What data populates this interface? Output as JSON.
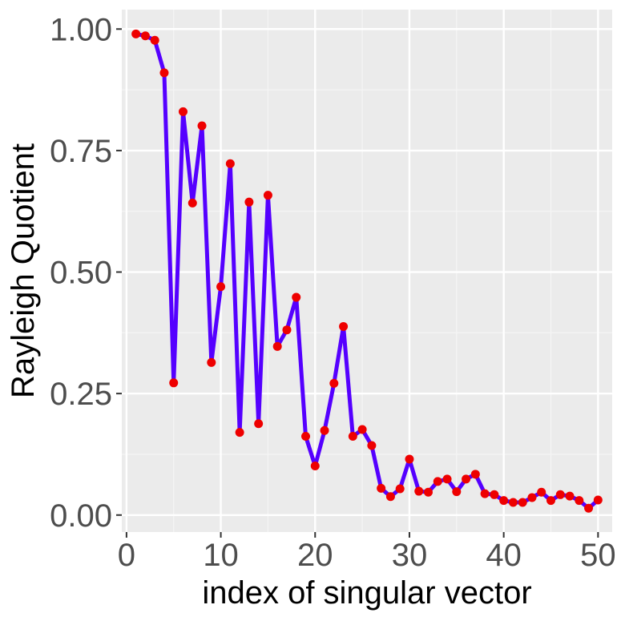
{
  "chart_data": {
    "type": "line",
    "xlabel": "index of singular vector",
    "ylabel": "Rayleigh Quotient",
    "xlim": [
      -0.5,
      51.5
    ],
    "ylim": [
      -0.035,
      1.04
    ],
    "x_ticks": [
      0,
      10,
      20,
      30,
      40,
      50
    ],
    "x_tick_labels": [
      "0",
      "10",
      "20",
      "30",
      "40",
      "50"
    ],
    "y_ticks": [
      0,
      0.25,
      0.5,
      0.75,
      1.0
    ],
    "y_tick_labels": [
      "0.00",
      "0.25",
      "0.50",
      "0.75",
      "1.00"
    ],
    "grid": true,
    "legend": "none",
    "colors": {
      "panel_background": "#ebebeb",
      "grid_major": "#ffffff",
      "grid_minor": "#f5f5f5",
      "line": "#5500ff",
      "points": "#ee0000"
    },
    "series": [
      {
        "x": [
          1,
          2,
          3,
          4,
          5,
          6,
          7,
          8,
          9,
          10,
          11,
          12,
          13,
          14,
          15,
          16,
          17,
          18,
          19,
          20,
          21,
          22,
          23,
          24,
          25,
          26,
          27,
          28,
          29,
          30,
          31,
          32,
          33,
          34,
          35,
          36,
          37,
          38,
          39,
          40,
          41,
          42,
          43,
          44,
          45,
          46,
          47,
          48,
          49,
          50
        ],
        "values": [
          0.99,
          0.986,
          0.977,
          0.91,
          0.272,
          0.83,
          0.642,
          0.801,
          0.314,
          0.47,
          0.723,
          0.17,
          0.644,
          0.188,
          0.658,
          0.347,
          0.381,
          0.448,
          0.162,
          0.101,
          0.174,
          0.271,
          0.388,
          0.162,
          0.176,
          0.143,
          0.055,
          0.038,
          0.054,
          0.115,
          0.049,
          0.047,
          0.069,
          0.074,
          0.048,
          0.074,
          0.084,
          0.044,
          0.042,
          0.03,
          0.026,
          0.026,
          0.036,
          0.047,
          0.03,
          0.042,
          0.039,
          0.03,
          0.014,
          0.031
        ]
      }
    ]
  }
}
